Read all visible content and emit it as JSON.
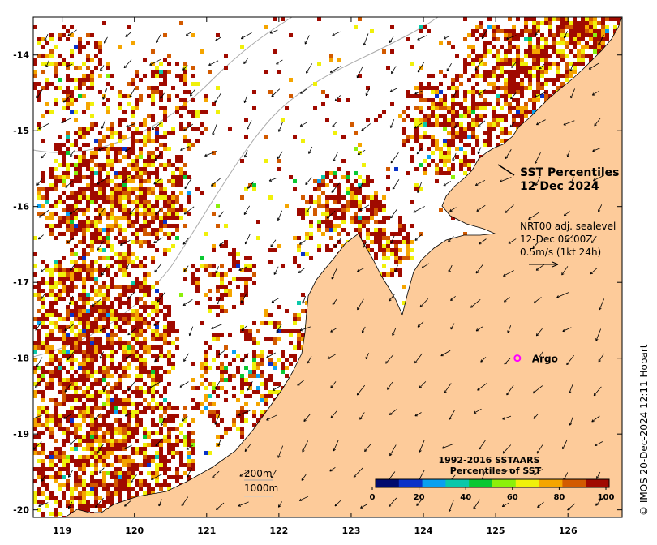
{
  "map": {
    "title_line1": "SST Percentiles",
    "title_line2": "12 Dec 2024",
    "current_info": [
      "NRT00 adj. sealevel",
      "12-Dec 06:00Z",
      "0.5m/s (1kt 24h)"
    ],
    "argo_label": "Argo",
    "argo_lon": 125.3,
    "argo_lat": -18.0,
    "argo_color": "#ff00ff",
    "land_color": "#fdcb9a",
    "credit": "© IMOS 20-Dec-2024 12:11 Hobart",
    "contour_labels": [
      "200m",
      "1000m"
    ],
    "lon_ticks": [
      "119",
      "120",
      "121",
      "122",
      "123",
      "124",
      "125",
      "126"
    ],
    "lat_ticks": [
      "-14",
      "-15",
      "-16",
      "-17",
      "-18",
      "-19",
      "-20"
    ],
    "lon_range": [
      118.6,
      126.75
    ],
    "lat_range": [
      -13.5,
      -20.1
    ]
  },
  "colorbar": {
    "title_line1": "1992-2016 SSTAARS",
    "title_line2": "Percentiles of SST",
    "labels": [
      "0",
      "20",
      "40",
      "60",
      "80",
      "100"
    ],
    "colors": [
      "#000a6e",
      "#0a32c8",
      "#0aa0f0",
      "#0ac8aa",
      "#0ac832",
      "#8cf00a",
      "#f0f00a",
      "#f5a500",
      "#d25a00",
      "#a00a00"
    ]
  }
}
